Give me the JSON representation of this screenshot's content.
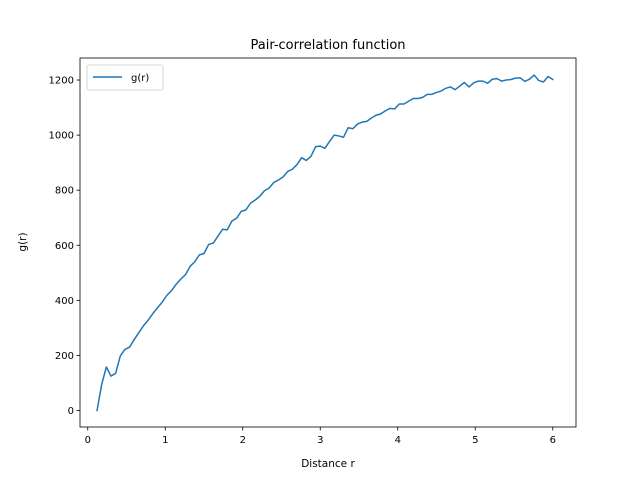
{
  "chart_data": {
    "type": "line",
    "title": "Pair-correlation function",
    "xlabel": "Distance r",
    "ylabel": "g(r)",
    "xlim": [
      -0.1,
      6.3
    ],
    "ylim": [
      -60,
      1280
    ],
    "xticks": [
      0,
      1,
      2,
      3,
      4,
      5,
      6
    ],
    "yticks": [
      0,
      200,
      400,
      600,
      800,
      1000,
      1200
    ],
    "grid": false,
    "legend_position": "top-left",
    "series": [
      {
        "name": "g(r)",
        "color": "#1f77b4",
        "x": [
          0.12,
          0.18,
          0.24,
          0.3,
          0.36,
          0.42,
          0.48,
          0.54,
          0.6,
          0.66,
          0.72,
          0.78,
          0.84,
          0.9,
          0.96,
          1.02,
          1.08,
          1.14,
          1.2,
          1.26,
          1.32,
          1.38,
          1.44,
          1.5,
          1.56,
          1.62,
          1.68,
          1.74,
          1.8,
          1.86,
          1.92,
          1.98,
          2.04,
          2.1,
          2.16,
          2.22,
          2.28,
          2.34,
          2.4,
          2.46,
          2.52,
          2.58,
          2.64,
          2.7,
          2.76,
          2.82,
          2.88,
          2.94,
          3.0,
          3.06,
          3.12,
          3.18,
          3.24,
          3.3,
          3.36,
          3.42,
          3.48,
          3.54,
          3.6,
          3.66,
          3.72,
          3.78,
          3.84,
          3.9,
          3.96,
          4.02,
          4.08,
          4.14,
          4.2,
          4.26,
          4.32,
          4.38,
          4.44,
          4.5,
          4.56,
          4.62,
          4.68,
          4.74,
          4.8,
          4.86,
          4.92,
          4.98,
          5.04,
          5.1,
          5.16,
          5.22,
          5.28,
          5.34,
          5.4,
          5.46,
          5.52,
          5.58,
          5.64,
          5.7,
          5.76,
          5.82,
          5.88,
          5.94,
          6.0
        ],
        "values": [
          0,
          95,
          158,
          125,
          135,
          198,
          222,
          230,
          258,
          283,
          308,
          328,
          352,
          373,
          393,
          418,
          435,
          458,
          477,
          493,
          523,
          540,
          565,
          570,
          603,
          608,
          633,
          658,
          656,
          688,
          698,
          723,
          728,
          753,
          764,
          778,
          798,
          808,
          828,
          837,
          848,
          868,
          876,
          893,
          918,
          908,
          923,
          958,
          960,
          952,
          977,
          1000,
          997,
          992,
          1027,
          1023,
          1040,
          1047,
          1050,
          1062,
          1072,
          1077,
          1088,
          1097,
          1095,
          1113,
          1113,
          1123,
          1133,
          1133,
          1137,
          1148,
          1148,
          1155,
          1160,
          1170,
          1175,
          1165,
          1178,
          1191,
          1175,
          1190,
          1196,
          1196,
          1188,
          1203,
          1205,
          1196,
          1200,
          1202,
          1207,
          1208,
          1195,
          1203,
          1218,
          1198,
          1193,
          1213,
          1202
        ]
      }
    ]
  }
}
